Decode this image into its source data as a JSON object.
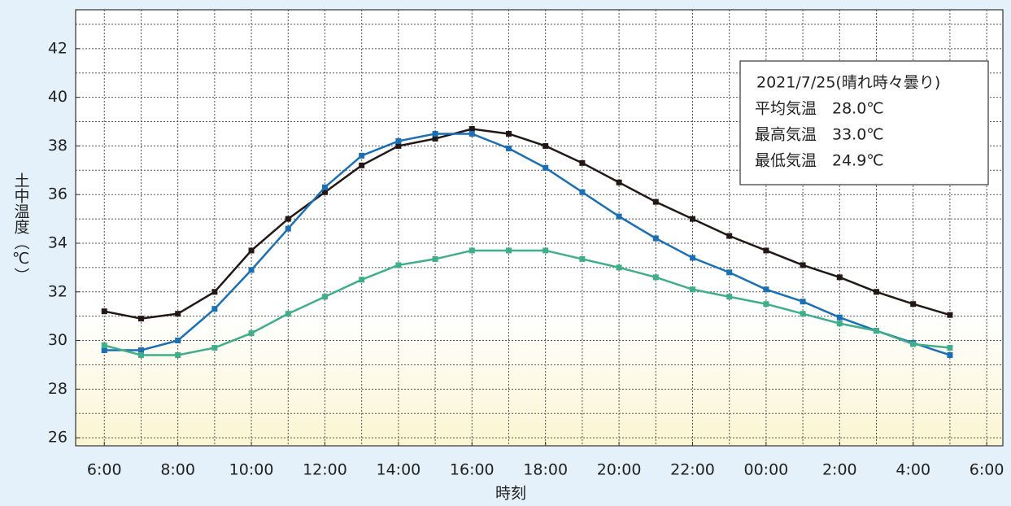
{
  "chart_data": {
    "type": "line",
    "xlabel": "時刻",
    "ylabel": "土中温度（℃）",
    "x": [
      6,
      7,
      8,
      9,
      10,
      11,
      12,
      13,
      14,
      15,
      16,
      17,
      18,
      19,
      20,
      21,
      22,
      23,
      24,
      25,
      26,
      27,
      28,
      29
    ],
    "series": [
      {
        "color": "#231815",
        "values": [
          31.2,
          30.9,
          31.1,
          32.0,
          33.7,
          35.0,
          36.1,
          37.2,
          38.0,
          38.3,
          38.7,
          38.5,
          38.0,
          37.3,
          36.5,
          35.7,
          35.0,
          34.3,
          33.7,
          33.1,
          32.6,
          32.0,
          31.5,
          31.05
        ]
      },
      {
        "color": "#1a6fb5",
        "values": [
          29.6,
          29.6,
          30.0,
          31.3,
          32.9,
          34.6,
          36.3,
          37.6,
          38.2,
          38.5,
          38.5,
          37.9,
          37.1,
          36.1,
          35.1,
          34.2,
          33.4,
          32.8,
          32.1,
          31.6,
          30.95,
          30.4,
          29.9,
          29.4
        ]
      },
      {
        "color": "#3fae8a",
        "values": [
          29.8,
          29.4,
          29.4,
          29.7,
          30.3,
          31.1,
          31.8,
          32.5,
          33.1,
          33.35,
          33.7,
          33.7,
          33.7,
          33.35,
          33.0,
          32.6,
          32.1,
          31.8,
          31.5,
          31.1,
          30.7,
          30.4,
          29.85,
          29.7
        ]
      }
    ],
    "xlim": [
      5.22,
      30.44
    ],
    "ylim": [
      25.67,
      43.6
    ],
    "xticks": [
      {
        "value": 6,
        "label": "6:00"
      },
      {
        "value": 8,
        "label": "8:00"
      },
      {
        "value": 10,
        "label": "10:00"
      },
      {
        "value": 12,
        "label": "12:00"
      },
      {
        "value": 14,
        "label": "14:00"
      },
      {
        "value": 16,
        "label": "16:00"
      },
      {
        "value": 18,
        "label": "18:00"
      },
      {
        "value": 20,
        "label": "20:00"
      },
      {
        "value": 22,
        "label": "22:00"
      },
      {
        "value": 24,
        "label": "00:00"
      },
      {
        "value": 26,
        "label": "2:00"
      },
      {
        "value": 28,
        "label": "4:00"
      },
      {
        "value": 30,
        "label": "6:00"
      }
    ],
    "yticks": [
      26,
      28,
      30,
      32,
      34,
      36,
      38,
      40,
      42
    ],
    "grid": true,
    "xgrid_step": 1,
    "ygrid_step": 1,
    "annotation": [
      "2021/7/25(晴れ時々曇り)",
      "平均気温　28.0℃",
      "最高気温　33.0℃",
      "最低気温　24.9℃"
    ]
  }
}
